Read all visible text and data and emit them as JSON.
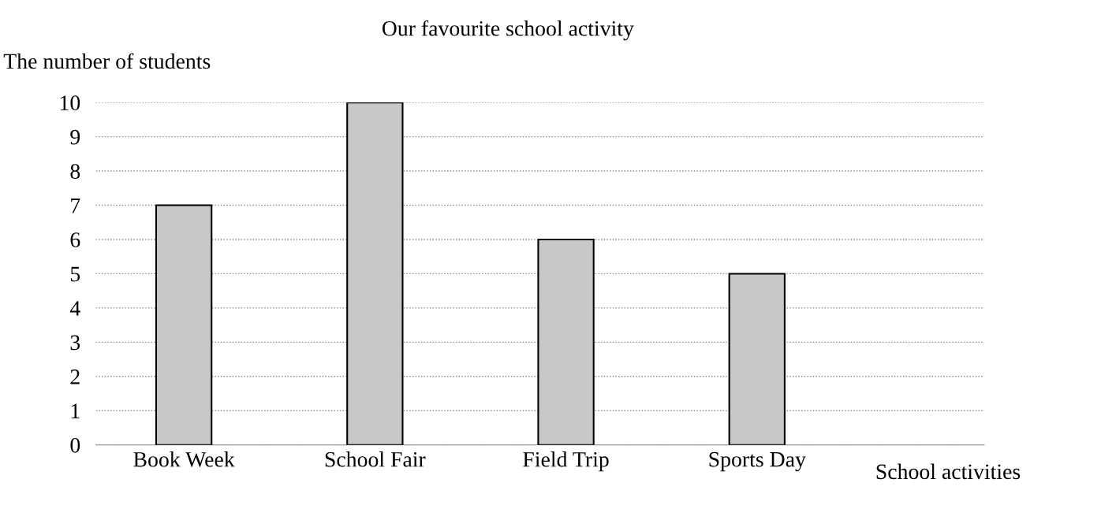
{
  "chart_data": {
    "type": "bar",
    "title": "Our favourite school activity",
    "ylabel": "The number of students",
    "xlabel": "School activities",
    "categories": [
      "Book Week",
      "School Fair",
      "Field Trip",
      "Sports Day"
    ],
    "values": [
      7,
      10,
      6,
      5
    ],
    "color": "#c8c8c8",
    "ylim": [
      0,
      10
    ],
    "yticks": [
      0,
      1,
      2,
      3,
      4,
      5,
      6,
      7,
      8,
      9,
      10
    ],
    "grid": "y",
    "legend": false
  }
}
